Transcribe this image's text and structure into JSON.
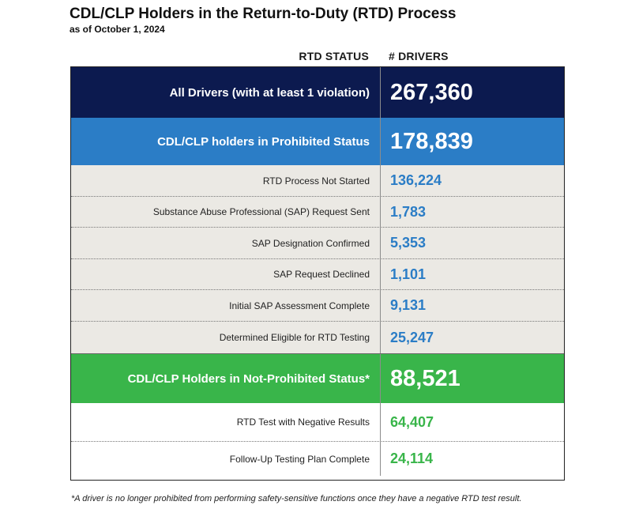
{
  "title": "CDL/CLP Holders in the Return-to-Duty (RTD) Process",
  "subtitle": "as of October 1, 2024",
  "column_headers": {
    "status": "RTD STATUS",
    "drivers": "# DRIVERS"
  },
  "colors": {
    "navy": "#0c1a4f",
    "blue": "#2b7dc6",
    "green": "#39b54a",
    "grey_row": "#ebe9e4",
    "white_row": "#ffffff",
    "blue_text": "#2b7dc6",
    "green_text": "#39b54a"
  },
  "footnote": "*A driver is no longer prohibited from performing safety-sensitive functions once they have a negative RTD test result.",
  "chart_data": {
    "type": "table",
    "title": "CDL/CLP Holders in the Return-to-Duty (RTD) Process",
    "subtitle": "as of October 1, 2024",
    "columns": [
      "RTD STATUS",
      "# DRIVERS"
    ],
    "rows": [
      {
        "status": "All Drivers (with at least 1 violation)",
        "drivers": "267,360",
        "level": "major",
        "group": "navy"
      },
      {
        "status": "CDL/CLP holders in Prohibited Status",
        "drivers": "178,839",
        "level": "major",
        "group": "blue"
      },
      {
        "status": "RTD Process Not Started",
        "drivers": "136,224",
        "level": "minor",
        "group": "blue"
      },
      {
        "status": "Substance Abuse Professional (SAP) Request Sent",
        "drivers": "1,783",
        "level": "minor",
        "group": "blue"
      },
      {
        "status": "SAP Designation Confirmed",
        "drivers": "5,353",
        "level": "minor",
        "group": "blue"
      },
      {
        "status": "SAP Request Declined",
        "drivers": "1,101",
        "level": "minor",
        "group": "blue"
      },
      {
        "status": "Initial SAP Assessment Complete",
        "drivers": "9,131",
        "level": "minor",
        "group": "blue"
      },
      {
        "status": "Determined Eligible for RTD Testing",
        "drivers": "25,247",
        "level": "minor",
        "group": "blue"
      },
      {
        "status": "CDL/CLP Holders in Not-Prohibited Status*",
        "drivers": "88,521",
        "level": "major",
        "group": "green"
      },
      {
        "status": "RTD Test with Negative Results",
        "drivers": "64,407",
        "level": "minor",
        "group": "green"
      },
      {
        "status": "Follow-Up Testing Plan Complete",
        "drivers": "24,114",
        "level": "minor",
        "group": "green"
      }
    ]
  }
}
